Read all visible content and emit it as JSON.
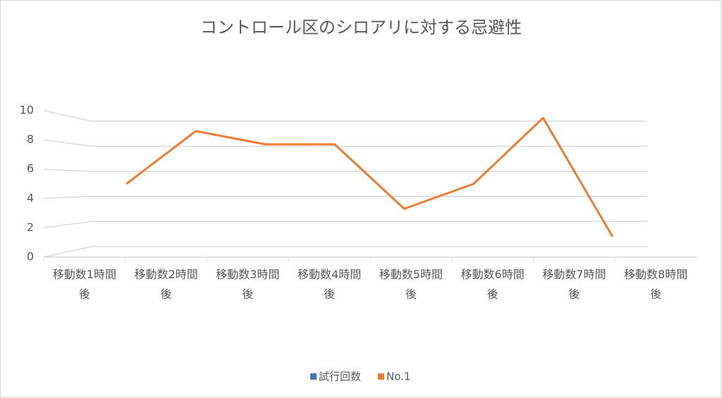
{
  "chart_data": {
    "type": "line",
    "title": "コントロール区のシロアリに対する忌避性",
    "categories": [
      "移動数1時間後",
      "移動数2時間後",
      "移動数3時間後",
      "移動数4時間後",
      "移動数5時間後",
      "移動数6時間後",
      "移動数7時間後",
      "移動数8時間後"
    ],
    "series": [
      {
        "name": "試行回数",
        "color": "#4472c4",
        "values": [
          null,
          null,
          null,
          null,
          null,
          null,
          null,
          null
        ]
      },
      {
        "name": "No.1",
        "color": "#ed7d31",
        "values": [
          5,
          8.6,
          7.7,
          7.7,
          3.3,
          5,
          9.5,
          1.4
        ]
      }
    ],
    "ylim": [
      0,
      10
    ],
    "yticks": [
      0,
      2,
      4,
      6,
      8,
      10
    ],
    "grid": true,
    "legend": "bottom"
  }
}
